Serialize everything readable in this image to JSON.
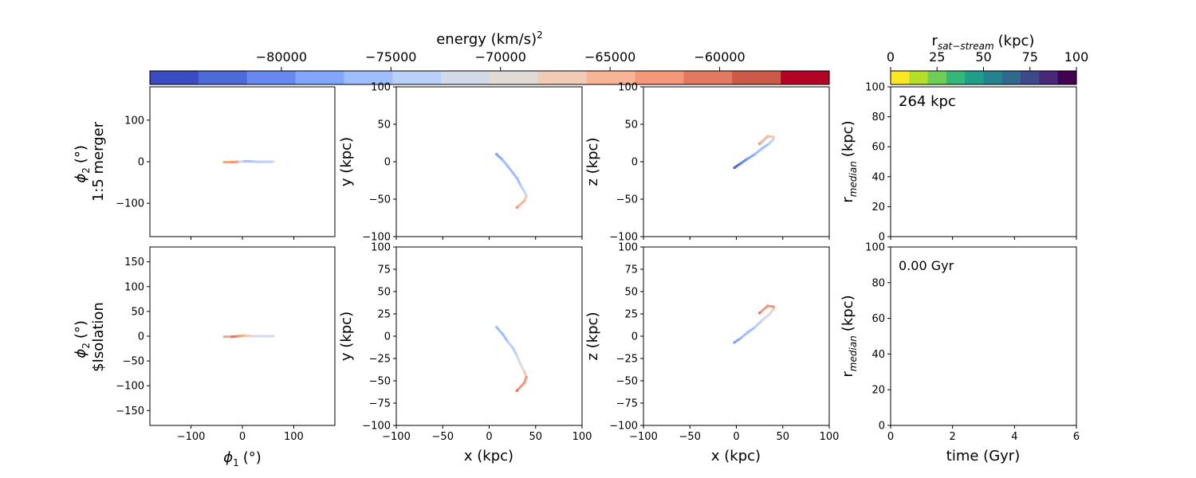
{
  "figure": {
    "colorbar_energy": {
      "label": "energy (km/s)",
      "label_sup": "2",
      "range": [
        -86000,
        -55000
      ],
      "ticks": [
        "−80000",
        "−75000",
        "−70000",
        "−65000",
        "−60000"
      ],
      "tick_values": [
        -80000,
        -75000,
        -70000,
        -65000,
        -60000
      ],
      "colormap": "coolwarm",
      "colors": [
        "#3b4cc0",
        "#4e69d8",
        "#6788ee",
        "#82a6fb",
        "#9ebefe",
        "#b9d0f9",
        "#d1dae9",
        "#e2dad5",
        "#f2cbb7",
        "#f7b497",
        "#f39879",
        "#e27a61",
        "#cc5a48",
        "#b40426"
      ]
    },
    "colorbar_rsat": {
      "label": "r",
      "label_sub": "sat−stream",
      "label_unit": "(kpc)",
      "range": [
        0,
        100
      ],
      "ticks": [
        "0",
        "25",
        "50",
        "75",
        "100"
      ],
      "tick_values": [
        0,
        25,
        50,
        75,
        100
      ],
      "colormap": "viridis_r",
      "colors": [
        "#fde725",
        "#b5de2b",
        "#6ece58",
        "#35b779",
        "#1f9e89",
        "#26828e",
        "#31688e",
        "#3e4989",
        "#482878",
        "#440154"
      ]
    },
    "rows": [
      {
        "row_label": "1:5 merger",
        "annotation": "264 kpc"
      },
      {
        "row_label": "$Isolation",
        "annotation": "0.00 Gyr"
      }
    ],
    "labels": {
      "phi2": "ϕ",
      "phi2_sub": "2",
      "phi2_unit": "(°)",
      "phi1": "ϕ",
      "phi1_sub": "1",
      "phi1_unit": "(°)",
      "x": "x (kpc)",
      "y": "y (kpc)",
      "z": "z (kpc)",
      "rmed": "r",
      "rmed_sub": "median",
      "rmed_unit": "(kpc)",
      "time": "time (Gyr)"
    }
  },
  "chart_data": [
    {
      "type": "scatter",
      "panel": "top-phi",
      "xlim": [
        -180,
        180
      ],
      "ylim": [
        -180,
        180
      ],
      "xticks": [],
      "yticks": [
        -100,
        0,
        100
      ],
      "xlabel": "",
      "ylabel": "ϕ2 (°) 1:5 merger",
      "stream": [
        [
          -35,
          -1,
          "#f2a58a"
        ],
        [
          -20,
          -1,
          "#f39879"
        ],
        [
          -5,
          0,
          "#c9d7f0"
        ],
        [
          5,
          1,
          "#9ebefe"
        ],
        [
          15,
          1,
          "#aac7fd"
        ],
        [
          25,
          0,
          "#b9d0f9"
        ],
        [
          60,
          0,
          "#d9dce1"
        ]
      ]
    },
    {
      "type": "scatter",
      "panel": "top-xy",
      "xlim": [
        -100,
        100
      ],
      "ylim": [
        -100,
        100
      ],
      "xticks": [],
      "yticks": [
        -100,
        -50,
        0,
        50,
        100
      ],
      "xlabel": "",
      "ylabel": "y (kpc)",
      "stream": [
        [
          8,
          10,
          "#82a6fb"
        ],
        [
          14,
          3,
          "#9ebefe"
        ],
        [
          20,
          -6,
          "#9ebefe"
        ],
        [
          25,
          -14,
          "#9ebefe"
        ],
        [
          30,
          -22,
          "#9ebefe"
        ],
        [
          34,
          -32,
          "#b9d0f9"
        ],
        [
          38,
          -40,
          "#c9d7f0"
        ],
        [
          40,
          -46,
          "#f2cbb7"
        ],
        [
          38,
          -52,
          "#f7b497"
        ],
        [
          30,
          -61,
          "#f39879"
        ]
      ]
    },
    {
      "type": "scatter",
      "panel": "top-xz",
      "xlim": [
        -100,
        100
      ],
      "ylim": [
        -100,
        100
      ],
      "xticks": [],
      "yticks": [
        -100,
        -50,
        0,
        50,
        100
      ],
      "xlabel": "",
      "ylabel": "z (kpc)",
      "stream": [
        [
          -2,
          -8,
          "#4e69d8"
        ],
        [
          5,
          -2,
          "#6788ee"
        ],
        [
          12,
          4,
          "#82a6fb"
        ],
        [
          20,
          10,
          "#9ebefe"
        ],
        [
          28,
          18,
          "#9ebefe"
        ],
        [
          35,
          24,
          "#b9d0f9"
        ],
        [
          40,
          30,
          "#d1dae9"
        ],
        [
          40,
          33,
          "#f2cbb7"
        ],
        [
          34,
          34,
          "#f7b497"
        ],
        [
          25,
          24,
          "#f39879"
        ]
      ]
    },
    {
      "type": "line",
      "panel": "top-r",
      "xlim": [
        0,
        6
      ],
      "ylim": [
        0,
        100
      ],
      "xticks": [],
      "yticks": [
        0,
        20,
        40,
        60,
        80,
        100
      ],
      "xlabel": "",
      "ylabel": "rmedian (kpc)",
      "series": []
    },
    {
      "type": "scatter",
      "panel": "bottom-phi",
      "xlim": [
        -180,
        180
      ],
      "ylim": [
        -180,
        180
      ],
      "xticks": [
        -100,
        0,
        100
      ],
      "yticks": [
        -150,
        -100,
        -50,
        0,
        50,
        100,
        150
      ],
      "xlabel": "ϕ1 (°)",
      "ylabel": "ϕ2 (°) $Isolation",
      "stream": [
        [
          -35,
          -1,
          "#f2a58a"
        ],
        [
          -20,
          -1,
          "#e27a61"
        ],
        [
          -8,
          0,
          "#f39879"
        ],
        [
          0,
          1,
          "#f7b497"
        ],
        [
          8,
          1,
          "#f2cbb7"
        ],
        [
          20,
          0,
          "#d1dae9"
        ],
        [
          60,
          0,
          "#d9dce1"
        ]
      ]
    },
    {
      "type": "scatter",
      "panel": "bottom-xy",
      "xlim": [
        -100,
        100
      ],
      "ylim": [
        -100,
        100
      ],
      "xticks": [
        -100,
        -50,
        0,
        50,
        100
      ],
      "yticks": [
        -100,
        -75,
        -50,
        -25,
        0,
        25,
        50,
        75,
        100
      ],
      "xlabel": "x (kpc)",
      "ylabel": "y (kpc)",
      "stream": [
        [
          8,
          10,
          "#9ebefe"
        ],
        [
          14,
          3,
          "#9ebefe"
        ],
        [
          20,
          -6,
          "#b9d0f9"
        ],
        [
          26,
          -14,
          "#b9d0f9"
        ],
        [
          30,
          -22,
          "#d1dae9"
        ],
        [
          34,
          -32,
          "#e2dad5"
        ],
        [
          38,
          -40,
          "#f2cbb7"
        ],
        [
          40,
          -46,
          "#f39879"
        ],
        [
          38,
          -52,
          "#f39879"
        ],
        [
          30,
          -61,
          "#e27a61"
        ]
      ]
    },
    {
      "type": "scatter",
      "panel": "bottom-xz",
      "xlim": [
        -100,
        100
      ],
      "ylim": [
        -100,
        100
      ],
      "xticks": [
        -100,
        -50,
        0,
        50,
        100
      ],
      "yticks": [
        -100,
        -75,
        -50,
        -25,
        0,
        25,
        50,
        75,
        100
      ],
      "xlabel": "x (kpc)",
      "ylabel": "z (kpc)",
      "stream": [
        [
          -2,
          -7,
          "#82a6fb"
        ],
        [
          5,
          -2,
          "#9ebefe"
        ],
        [
          12,
          4,
          "#9ebefe"
        ],
        [
          20,
          10,
          "#b9d0f9"
        ],
        [
          28,
          18,
          "#d1dae9"
        ],
        [
          35,
          24,
          "#e2dad5"
        ],
        [
          40,
          30,
          "#f2cbb7"
        ],
        [
          40,
          33,
          "#f39879"
        ],
        [
          34,
          34,
          "#f39879"
        ],
        [
          25,
          26,
          "#e27a61"
        ]
      ]
    },
    {
      "type": "line",
      "panel": "bottom-r",
      "xlim": [
        0,
        6
      ],
      "ylim": [
        0,
        100
      ],
      "xticks": [
        0,
        2,
        4,
        6
      ],
      "yticks": [
        0,
        20,
        40,
        60,
        80,
        100
      ],
      "xlabel": "time (Gyr)",
      "ylabel": "rmedian (kpc)",
      "series": []
    }
  ]
}
